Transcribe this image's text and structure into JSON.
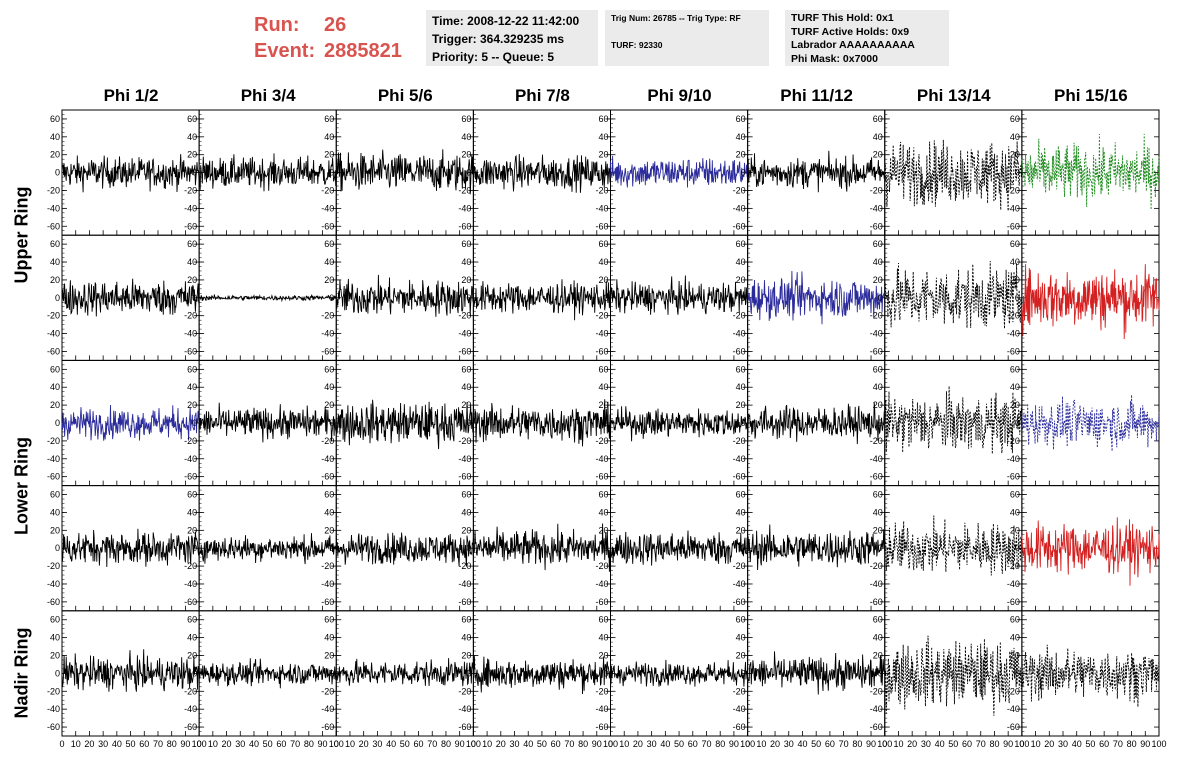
{
  "header": {
    "run_label": "Run:",
    "run_value": "26",
    "event_label": "Event:",
    "event_value": "2885821",
    "time_line": "Time: 2008-12-22 11:42:00",
    "trigger_line": "Trigger: 364.329235 ms",
    "priority_line": "Priority: 5 -- Queue: 5",
    "trig_line": "Trig Num: 26785 -- Trig Type: RF",
    "turf_line": "TURF: 92330",
    "turf_hold_line": "TURF This Hold: 0x1",
    "turf_active_line": "TURF Active Holds: 0x9",
    "labrador_line": "Labrador AAAAAAAAAA",
    "phimask_line": "Phi Mask: 0x7000"
  },
  "chart_data": {
    "type": "line",
    "columns": [
      "Phi 1/2",
      "Phi 3/4",
      "Phi 5/6",
      "Phi 7/8",
      "Phi 9/10",
      "Phi 11/12",
      "Phi 13/14",
      "Phi 15/16"
    ],
    "rows": [
      "Upper Ring",
      "Upper Ring",
      "Lower Ring",
      "Lower Ring",
      "Nadir Ring"
    ],
    "row_labels": [
      {
        "label": "Upper Ring",
        "rows": [
          0,
          1
        ]
      },
      {
        "label": "Lower Ring",
        "rows": [
          2,
          3
        ]
      },
      {
        "label": "Nadir Ring",
        "rows": [
          4
        ]
      }
    ],
    "x_ticks": [
      0,
      10,
      20,
      30,
      40,
      50,
      60,
      70,
      80,
      90,
      100
    ],
    "xlim": [
      0,
      100
    ],
    "y_ticks": [
      -60,
      -40,
      -20,
      0,
      20,
      40,
      60
    ],
    "ylim": [
      -70,
      70
    ],
    "colors": {
      "black": "#000000",
      "blue": "#2b2b9c",
      "green": "#1c8a1c",
      "red": "#d42020"
    },
    "panels": [
      [
        {
          "color": "black",
          "amp": 12
        },
        {
          "color": "black",
          "amp": 12
        },
        {
          "color": "black",
          "amp": 15
        },
        {
          "color": "black",
          "amp": 13
        },
        {
          "color": "blue",
          "amp": 12
        },
        {
          "color": "black",
          "amp": 12
        },
        {
          "color": "black",
          "amp": 25,
          "dashed": true
        },
        {
          "color": "green",
          "amp": 22,
          "dashed": true
        }
      ],
      [
        {
          "color": "black",
          "amp": 14
        },
        {
          "color": "black",
          "amp": 2
        },
        {
          "color": "black",
          "amp": 14
        },
        {
          "color": "black",
          "amp": 12
        },
        {
          "color": "black",
          "amp": 12
        },
        {
          "color": "blue",
          "amp": 16
        },
        {
          "color": "black",
          "amp": 24,
          "dashed": true
        },
        {
          "color": "red",
          "amp": 24
        }
      ],
      [
        {
          "color": "blue",
          "amp": 12
        },
        {
          "color": "black",
          "amp": 12
        },
        {
          "color": "black",
          "amp": 16
        },
        {
          "color": "black",
          "amp": 14
        },
        {
          "color": "black",
          "amp": 11
        },
        {
          "color": "black",
          "amp": 13
        },
        {
          "color": "black",
          "amp": 22,
          "dashed": true
        },
        {
          "color": "blue",
          "amp": 18,
          "dashed": true
        }
      ],
      [
        {
          "color": "black",
          "amp": 13
        },
        {
          "color": "black",
          "amp": 10
        },
        {
          "color": "black",
          "amp": 12
        },
        {
          "color": "black",
          "amp": 14
        },
        {
          "color": "black",
          "amp": 13
        },
        {
          "color": "black",
          "amp": 14
        },
        {
          "color": "black",
          "amp": 20,
          "dashed": true
        },
        {
          "color": "red",
          "amp": 20
        }
      ],
      [
        {
          "color": "black",
          "amp": 13
        },
        {
          "color": "black",
          "amp": 9
        },
        {
          "color": "black",
          "amp": 10
        },
        {
          "color": "black",
          "amp": 12
        },
        {
          "color": "black",
          "amp": 9
        },
        {
          "color": "black",
          "amp": 13
        },
        {
          "color": "black",
          "amp": 26,
          "dashed": true
        },
        {
          "color": "black",
          "amp": 20,
          "dashed": true
        }
      ]
    ]
  }
}
